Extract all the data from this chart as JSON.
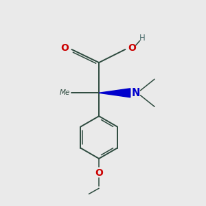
{
  "background_color": "#eaeaea",
  "bond_color": "#2d4a3e",
  "oxygen_color": "#cc0000",
  "nitrogen_color": "#0000cc",
  "hydrogen_color": "#507070",
  "figsize": [
    3.0,
    3.0
  ],
  "dpi": 100,
  "xlim": [
    0,
    10
  ],
  "ylim": [
    0,
    10
  ]
}
